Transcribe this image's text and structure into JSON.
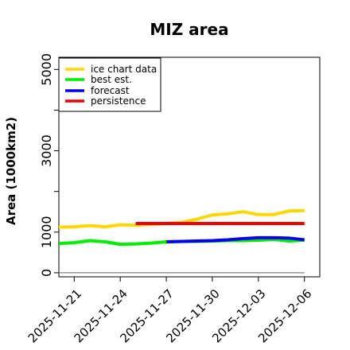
{
  "chart_data": {
    "type": "line",
    "title": "MIZ area",
    "xlabel": "",
    "ylabel": "Area (1000km2)",
    "x_ticks": [
      "2025-11-21",
      "2025-11-24",
      "2025-11-27",
      "2025-11-30",
      "2025-12-03",
      "2025-12-06"
    ],
    "x_tick_colors": [
      "#000000",
      "#000000",
      "#228B22",
      "#000000",
      "#000000",
      "#000000"
    ],
    "y_tick_labels": [
      "0",
      "1000",
      "3000",
      "5000"
    ],
    "y_minor_ticks": [
      2000,
      4000
    ],
    "xlim": [
      "2025-11-20",
      "2025-12-07"
    ],
    "ylim": [
      -100,
      5300
    ],
    "grid": false,
    "legend_position": "top-left",
    "baseline": {
      "value": 0,
      "color": "#808080"
    },
    "series": [
      {
        "name": "ice chart data",
        "color": "#FFD700",
        "x": [
          "2025-11-20",
          "2025-11-21",
          "2025-11-22",
          "2025-11-23",
          "2025-11-24",
          "2025-11-25",
          "2025-11-26",
          "2025-11-27",
          "2025-11-28",
          "2025-11-29",
          "2025-11-30",
          "2025-12-01",
          "2025-12-02",
          "2025-12-03",
          "2025-12-04",
          "2025-12-05",
          "2025-12-06"
        ],
        "values": [
          1120,
          1130,
          1160,
          1130,
          1180,
          1170,
          1190,
          1210,
          1240,
          1320,
          1420,
          1450,
          1500,
          1430,
          1430,
          1520,
          1530
        ]
      },
      {
        "name": "best est.",
        "color": "#00EE00",
        "x": [
          "2025-11-20",
          "2025-11-21",
          "2025-11-22",
          "2025-11-23",
          "2025-11-24",
          "2025-11-25",
          "2025-11-26",
          "2025-11-27",
          "2025-11-28",
          "2025-11-29",
          "2025-11-30",
          "2025-12-01",
          "2025-12-02",
          "2025-12-03",
          "2025-12-04",
          "2025-12-05",
          "2025-12-06"
        ],
        "values": [
          720,
          740,
          790,
          760,
          700,
          710,
          730,
          760,
          770,
          770,
          780,
          790,
          790,
          800,
          820,
          780,
          800
        ]
      },
      {
        "name": "forecast",
        "color": "#0000EE",
        "x": [
          "2025-11-27",
          "2025-11-28",
          "2025-11-29",
          "2025-11-30",
          "2025-12-01",
          "2025-12-02",
          "2025-12-03",
          "2025-12-04",
          "2025-12-05",
          "2025-12-06"
        ],
        "values": [
          760,
          770,
          780,
          790,
          810,
          840,
          860,
          860,
          850,
          810
        ]
      },
      {
        "name": "persistence",
        "color": "#EE0000",
        "x": [
          "2025-11-25",
          "2025-12-06"
        ],
        "values": [
          1210,
          1210
        ]
      }
    ]
  }
}
